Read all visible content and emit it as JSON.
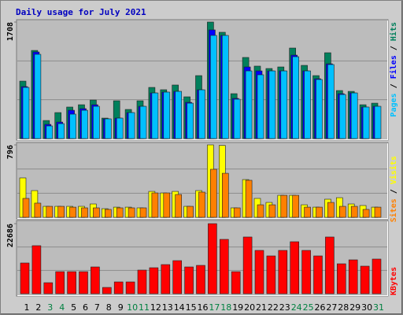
{
  "title": "Daily usage for July 2021",
  "legend_separator": " / ",
  "chart_data": [
    {
      "type": "bar",
      "ylim": [
        0,
        1708
      ],
      "yticks": [
        1708
      ],
      "grid": true,
      "series": [
        {
          "name": "Pages",
          "color": "#00c0ff",
          "values": [
            750,
            1235,
            185,
            219,
            358,
            415,
            473,
            289,
            300,
            381,
            473,
            669,
            681,
            692,
            519,
            715,
            1512,
            1512,
            577,
            992,
            935,
            992,
            992,
            1200,
            992,
            866,
            1085,
            646,
            669,
            462,
            473
          ]
        },
        {
          "name": "Files",
          "color": "#0000ff",
          "values": [
            762,
            1269,
            208,
            242,
            415,
            439,
            496,
            289,
            300,
            381,
            473,
            669,
            681,
            692,
            531,
            715,
            1593,
            1512,
            589,
            1050,
            992,
            992,
            992,
            1223,
            992,
            877,
            1096,
            658,
            669,
            462,
            473
          ]
        },
        {
          "name": "Hits",
          "color": "#00805c",
          "values": [
            842,
            1292,
            265,
            381,
            462,
            496,
            565,
            300,
            554,
            427,
            554,
            750,
            716,
            785,
            612,
            923,
            1708,
            1558,
            658,
            1189,
            1062,
            1027,
            1050,
            1327,
            1073,
            923,
            1258,
            704,
            692,
            496,
            519
          ]
        }
      ]
    },
    {
      "type": "bar",
      "ylim": [
        0,
        796
      ],
      "yticks": [
        796
      ],
      "grid": true,
      "series": [
        {
          "name": "Sites",
          "color": "#ff8000",
          "values": [
            208,
            156,
            121,
            121,
            112,
            104,
            104,
            87,
            104,
            104,
            104,
            268,
            268,
            251,
            121,
            277,
            528,
            484,
            104,
            407,
            138,
            138,
            242,
            242,
            112,
            112,
            164,
            121,
            121,
            87,
            112
          ]
        },
        {
          "name": "Visits",
          "color": "#ffff00",
          "values": [
            433,
            294,
            121,
            121,
            121,
            121,
            147,
            95,
            112,
            112,
            104,
            285,
            268,
            285,
            121,
            294,
            796,
            790,
            104,
            415,
            208,
            164,
            242,
            242,
            138,
            112,
            199,
            216,
            147,
            130,
            112
          ]
        }
      ]
    },
    {
      "type": "bar",
      "ylim": [
        0,
        22686
      ],
      "yticks": [
        22686
      ],
      "grid": true,
      "series": [
        {
          "name": "KBytes",
          "color": "#ff0000",
          "values": [
            9945,
            15555,
            3570,
            7140,
            7140,
            7140,
            8670,
            2040,
            3825,
            3825,
            7650,
            8415,
            9435,
            10710,
            8670,
            9180,
            22686,
            17595,
            7140,
            18360,
            14025,
            12240,
            14025,
            16830,
            14025,
            12240,
            18360,
            9690,
            10965,
            8925,
            11220
          ]
        }
      ],
      "categories": [
        "1",
        "2",
        "3",
        "4",
        "5",
        "6",
        "7",
        "8",
        "9",
        "10",
        "11",
        "12",
        "13",
        "14",
        "15",
        "16",
        "17",
        "18",
        "19",
        "20",
        "21",
        "22",
        "23",
        "24",
        "25",
        "26",
        "27",
        "28",
        "29",
        "30",
        "31"
      ],
      "label_colors": [
        "#000000",
        "#000000",
        "#008040",
        "#008040",
        "#000000",
        "#000000",
        "#000000",
        "#000000",
        "#000000",
        "#008040",
        "#008040",
        "#000000",
        "#000000",
        "#000000",
        "#000000",
        "#000000",
        "#008040",
        "#008040",
        "#000000",
        "#000000",
        "#000000",
        "#000000",
        "#000000",
        "#008040",
        "#008040",
        "#000000",
        "#000000",
        "#000000",
        "#000000",
        "#000000",
        "#008040"
      ]
    }
  ]
}
